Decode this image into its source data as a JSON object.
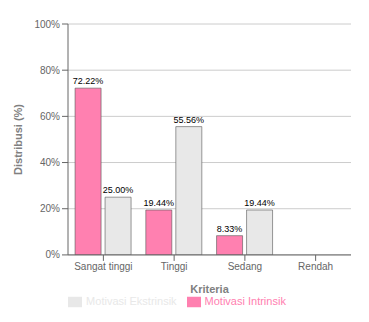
{
  "chart_data": {
    "type": "bar",
    "categories": [
      "Sangat tinggi",
      "Tinggi",
      "Sedang",
      "Rendah"
    ],
    "series": [
      {
        "name": "Motivasi Intrinsik",
        "color": "#FF80B0",
        "values": [
          72.22,
          19.44,
          8.33,
          0.0
        ],
        "value_labels": [
          "72.22%",
          "19.44%",
          "8.33%",
          null
        ]
      },
      {
        "name": "Motivasi Ekstrinsik",
        "color": "#E8E8E8",
        "values": [
          25.0,
          55.56,
          19.44,
          0.0
        ],
        "value_labels": [
          "25.00%",
          "55.56%",
          "19.44%",
          null
        ]
      }
    ],
    "xlabel": "Kriteria",
    "ylabel": "Distribusi (%)",
    "ylim": [
      0,
      100
    ],
    "yticks": [
      {
        "value": 0,
        "label": "0%"
      },
      {
        "value": 20,
        "label": "20%"
      },
      {
        "value": 40,
        "label": "40%"
      },
      {
        "value": 60,
        "label": "60%"
      },
      {
        "value": 80,
        "label": "80%"
      },
      {
        "value": 100,
        "label": "100%"
      }
    ],
    "grid": true,
    "legend": "bottom",
    "data_labels": true
  }
}
